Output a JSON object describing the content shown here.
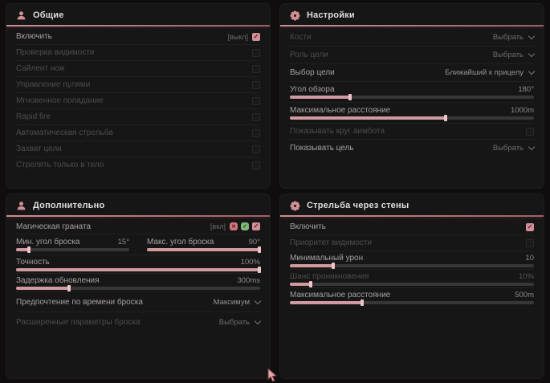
{
  "colors": {
    "accent": "#d18e97",
    "slider_fill": "#cf9aa1",
    "green_badge": "#7db877",
    "panel_bg": "#171616",
    "page_bg": "#0f0d0d"
  },
  "icons": {
    "panel_general": "person-icon",
    "panel_settings": "gear-icon",
    "panel_additional": "person-icon",
    "panel_wallshoot": "gear-icon",
    "dropdown": "chevron-down-icon",
    "magic_grenade_off": "heart-x-icon",
    "magic_grenade_on": "heart-check-icon",
    "pointer": "mouse-cursor-icon"
  },
  "panel_general": {
    "title": "Общие",
    "rows": [
      {
        "label": "Включить",
        "suffix": "[выкл]",
        "checked": true
      },
      {
        "label": "Проверка видимости",
        "checked": false
      },
      {
        "label": "Сайлент нож",
        "checked": false
      },
      {
        "label": "Управление пулями",
        "checked": false
      },
      {
        "label": "Мгновенное попадание",
        "checked": false
      },
      {
        "label": "Rapid fire",
        "checked": false
      },
      {
        "label": "Автоматическая стрельба",
        "checked": false
      },
      {
        "label": "Захват цели",
        "checked": false
      },
      {
        "label": "Стрелять только в тело",
        "checked": false
      }
    ]
  },
  "panel_settings": {
    "title": "Настройки",
    "bones": {
      "label": "Кости",
      "value": "Выбрать"
    },
    "target_role": {
      "label": "Роль цели",
      "value": "Выбрать"
    },
    "target_select": {
      "label": "Выбор цели",
      "value": "Ближайший к прицелу"
    },
    "fov": {
      "label": "Угол обзора",
      "value": "180°",
      "fill": 25
    },
    "max_distance": {
      "label": "Максимальное расстояние",
      "value": "1000m",
      "fill": 64
    },
    "show_circle": {
      "label": "Показывать круг аимбота",
      "checked": false
    },
    "show_target": {
      "label": "Показывать цель",
      "value": "Выбрать"
    }
  },
  "panel_additional": {
    "title": "Дополнительно",
    "magic_grenade": {
      "label": "Магическая граната",
      "suffix": "[вкл]",
      "checked": true
    },
    "min_angle": {
      "label": "Мин. угол броска",
      "value": "15°",
      "fill": 12
    },
    "max_angle": {
      "label": "Макс. угол броска",
      "value": "90°",
      "fill": 100
    },
    "accuracy": {
      "label": "Точность",
      "value": "100%",
      "fill": 100
    },
    "update_delay": {
      "label": "Задержка обновления",
      "value": "300ms",
      "fill": 22
    },
    "throw_time": {
      "label": "Предпочтение по времени броска",
      "value": "Максимум"
    },
    "advanced": {
      "label": "Расширенные параметры броска",
      "value": "Выбрать"
    }
  },
  "panel_wallshoot": {
    "title": "Стрельба через стены",
    "enable": {
      "label": "Включить",
      "checked": true
    },
    "visibility_priority": {
      "label": "Приоритет видимости",
      "checked": false
    },
    "min_damage": {
      "label": "Минимальный урон",
      "value": "10",
      "fill": 18
    },
    "penetration": {
      "label": "Шанс проникновения",
      "value": "10%",
      "fill": 9
    },
    "max_distance": {
      "label": "Максимальное расстояние",
      "value": "500m",
      "fill": 30
    }
  }
}
